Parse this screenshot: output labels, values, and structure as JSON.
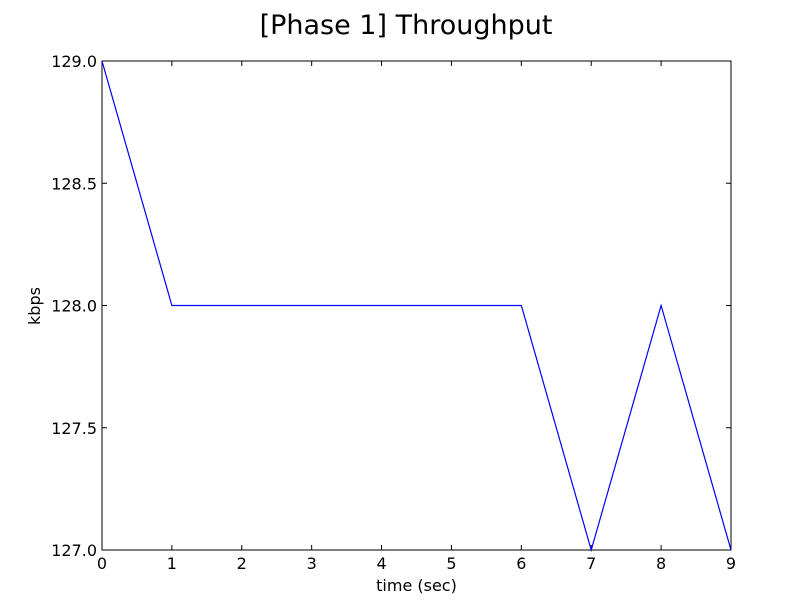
{
  "chart_data": {
    "type": "line",
    "title": "[Phase 1] Throughput",
    "xlabel": "time (sec)",
    "ylabel": "kbps",
    "xlim": [
      0,
      9
    ],
    "ylim": [
      127.0,
      129.0
    ],
    "x_ticks": [
      0,
      1,
      2,
      3,
      4,
      5,
      6,
      7,
      8,
      9
    ],
    "x_tick_labels": [
      "0",
      "1",
      "2",
      "3",
      "4",
      "5",
      "6",
      "7",
      "8",
      "9"
    ],
    "y_ticks": [
      127.0,
      127.5,
      128.0,
      128.5,
      129.0
    ],
    "y_tick_labels": [
      "127.0",
      "127.5",
      "128.0",
      "128.5",
      "129.0"
    ],
    "grid": false,
    "series": [
      {
        "color": "#0000ff",
        "x": [
          0,
          1,
          2,
          3,
          4,
          5,
          6,
          7,
          8,
          9
        ],
        "values": [
          129,
          128,
          128,
          128,
          128,
          128,
          128,
          127,
          128,
          127
        ]
      }
    ]
  }
}
